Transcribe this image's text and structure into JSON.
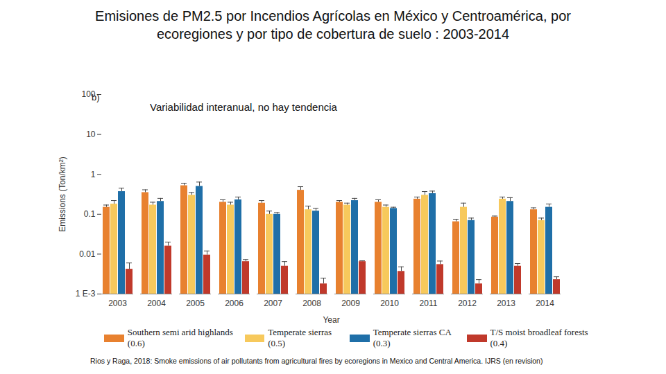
{
  "chart_data": {
    "type": "bar",
    "title": "Emisiones de PM2.5 por Incendios Agrícolas en México y Centroamérica, por ecoregiones y por tipo de cobertura de suelo : 2003-2014",
    "annotations": [
      "b)",
      "Variabilidad interanual, no hay tendencia"
    ],
    "caption": "Rios y Raga, 2018: Smoke emissions of air pollutants from agricultural fires by ecoregions in Mexico and Central America. IJRS (en revision)",
    "x_label": "Year",
    "y_label": "Emissions (Ton/km²)",
    "log": "y",
    "grid": false,
    "legend": "bottom",
    "categories": [
      2003,
      2004,
      2005,
      2006,
      2007,
      2008,
      2009,
      2010,
      2011,
      2012,
      2013,
      2014
    ],
    "ylim": [
      0.001,
      100
    ],
    "yticks": [
      {
        "value": 0.001,
        "label": "1 E-3"
      },
      0.01,
      0.1,
      1,
      10,
      100
    ],
    "series": [
      {
        "name": "Southern semi arid highlands (0.6)",
        "color": "#e8812f",
        "values": [
          0.15,
          0.35,
          0.52,
          0.2,
          0.19,
          0.4,
          0.2,
          0.2,
          0.24,
          0.065,
          0.085,
          0.13
        ],
        "errors": [
          0.02,
          0.06,
          0.08,
          0.03,
          0.03,
          0.09,
          0.02,
          0.03,
          0.03,
          0.01,
          0.005,
          0.015
        ]
      },
      {
        "name": "Temperate sierras (0.5)",
        "color": "#f7c95c",
        "values": [
          0.18,
          0.17,
          0.3,
          0.17,
          0.1,
          0.13,
          0.17,
          0.15,
          0.3,
          0.15,
          0.24,
          0.07
        ],
        "errors": [
          0.04,
          0.03,
          0.05,
          0.03,
          0.02,
          0.03,
          0.02,
          0.02,
          0.07,
          0.04,
          0.03,
          0.01
        ]
      },
      {
        "name": "Temperate sierras CA (0.3)",
        "color": "#1f6fa8",
        "values": [
          0.37,
          0.21,
          0.5,
          0.23,
          0.1,
          0.12,
          0.22,
          0.14,
          0.33,
          0.07,
          0.21,
          0.15
        ],
        "errors": [
          0.08,
          0.04,
          0.14,
          0.04,
          0.01,
          0.02,
          0.03,
          0.01,
          0.05,
          0.01,
          0.05,
          0.03
        ]
      },
      {
        "name": "T/S moist broadleaf forests (0.4)",
        "color": "#c0392b",
        "values": [
          0.0042,
          0.016,
          0.0095,
          0.0065,
          0.005,
          0.0018,
          0.0065,
          0.0037,
          0.0055,
          0.0018,
          0.005,
          0.0023
        ],
        "errors": [
          0.0018,
          0.004,
          0.0025,
          0.0008,
          0.0015,
          0.0007,
          0.0003,
          0.0011,
          0.0012,
          0.0005,
          0.0008,
          0.0004
        ]
      }
    ]
  }
}
